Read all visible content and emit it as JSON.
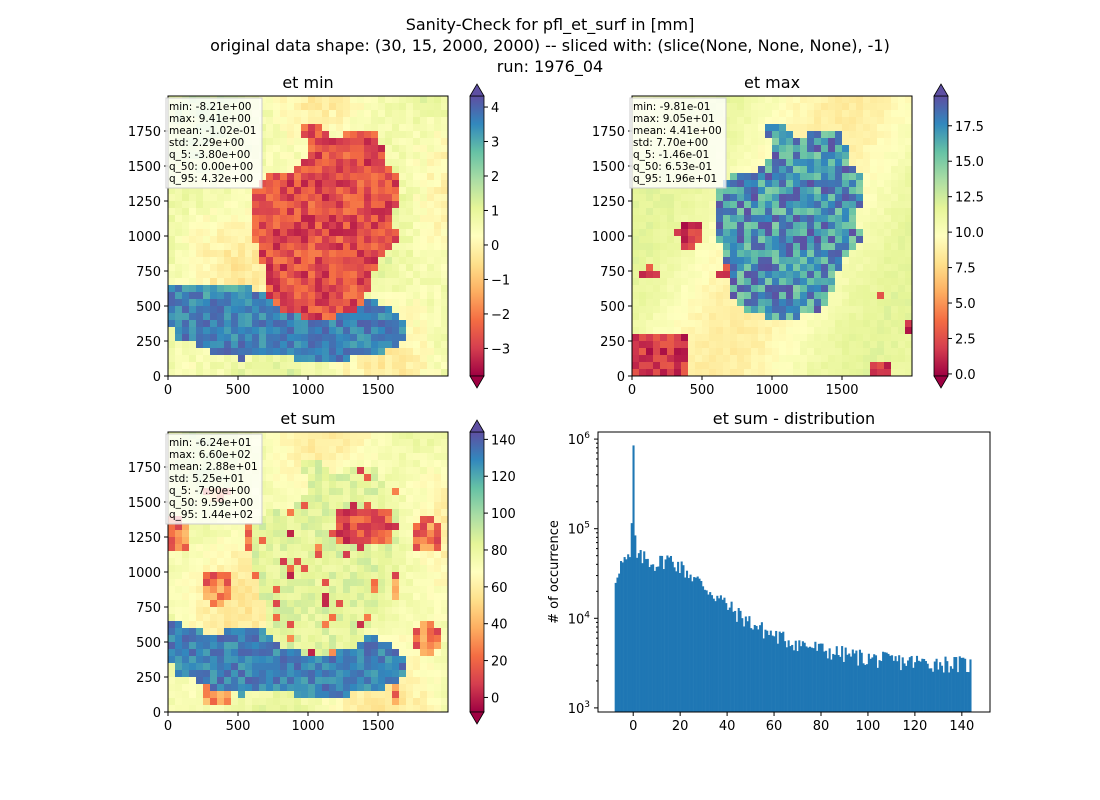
{
  "figure": {
    "title_lines": [
      "Sanity-Check for pfl_et_surf in [mm]",
      "original data shape: (30, 15, 2000, 2000) -- sliced with: (slice(None, None, None), -1)",
      "run: 1976_04"
    ]
  },
  "chart_data": [
    {
      "type": "heatmap",
      "title": "et min",
      "xlim": [
        0,
        2000
      ],
      "ylim": [
        0,
        2000
      ],
      "xticks": [
        "0",
        "500",
        "1000",
        "1500"
      ],
      "yticks": [
        "0",
        "250",
        "500",
        "750",
        "1000",
        "1250",
        "1500",
        "1750"
      ],
      "stats": [
        "min: -8.21e+00",
        "max: 9.41e+00",
        "mean: -1.02e-01",
        "std: 2.29e+00",
        "q_5: -3.80e+00",
        "q_50: 0.00e+00",
        "q_95: 4.32e+00"
      ],
      "colorbar": {
        "colormap": "Spectral",
        "range": [
          -3.8,
          4.32
        ],
        "ticks": [
          "−3",
          "−2",
          "−1",
          "0",
          "1",
          "2",
          "3",
          "4"
        ],
        "extend": "both"
      }
    },
    {
      "type": "heatmap",
      "title": "et max",
      "xlim": [
        0,
        2000
      ],
      "ylim": [
        0,
        2000
      ],
      "xticks": [
        "0",
        "500",
        "1000",
        "1500"
      ],
      "yticks": [
        "0",
        "250",
        "500",
        "750",
        "1000",
        "1250",
        "1500",
        "1750"
      ],
      "stats": [
        "min: -9.81e-01",
        "max: 9.05e+01",
        "mean: 4.41e+00",
        "std: 7.70e+00",
        "q_5: -1.46e-01",
        "q_50: 6.53e-01",
        "q_95: 1.96e+01"
      ],
      "colorbar": {
        "colormap": "Spectral",
        "range": [
          -0.146,
          19.6
        ],
        "ticks": [
          "0.0",
          "2.5",
          "5.0",
          "7.5",
          "10.0",
          "12.5",
          "15.0",
          "17.5"
        ],
        "extend": "both"
      }
    },
    {
      "type": "heatmap",
      "title": "et sum",
      "xlim": [
        0,
        2000
      ],
      "ylim": [
        0,
        2000
      ],
      "xticks": [
        "0",
        "500",
        "1000",
        "1500"
      ],
      "yticks": [
        "0",
        "250",
        "500",
        "750",
        "1000",
        "1250",
        "1500",
        "1750"
      ],
      "stats": [
        "min: -6.24e+01",
        "max: 6.60e+02",
        "mean: 2.88e+01",
        "std: 5.25e+01",
        "q_5: -7.90e+00",
        "q_50: 9.59e+00",
        "q_95: 1.44e+02"
      ],
      "colorbar": {
        "colormap": "Spectral",
        "range": [
          -7.9,
          144
        ],
        "ticks": [
          "0",
          "20",
          "40",
          "60",
          "80",
          "100",
          "120",
          "140"
        ],
        "extend": "both"
      }
    },
    {
      "type": "bar",
      "title": "et sum - distribution",
      "ylabel": "# of occurrence",
      "yscale": "log",
      "xlim": [
        -15,
        152
      ],
      "ylim": [
        900,
        1200000
      ],
      "xticks": [
        "0",
        "20",
        "40",
        "60",
        "80",
        "100",
        "120",
        "140"
      ],
      "yticks": [
        "10^3",
        "10^4",
        "10^5",
        "10^6"
      ],
      "bar_color": "#1f77b4",
      "bin_range": [
        -7.9,
        144
      ],
      "bin_count": 200,
      "counts_envelope": [
        [
          -7.9,
          25000
        ],
        [
          -6.5,
          36000
        ],
        [
          -5,
          41000
        ],
        [
          -3,
          44000
        ],
        [
          -1,
          46000
        ],
        [
          0,
          850000
        ],
        [
          1,
          47000
        ],
        [
          3,
          48000
        ],
        [
          5,
          47000
        ],
        [
          7,
          44000
        ],
        [
          9,
          41000
        ],
        [
          11,
          42000
        ],
        [
          13,
          45000
        ],
        [
          15,
          46000
        ],
        [
          17,
          44000
        ],
        [
          19,
          40000
        ],
        [
          21,
          36000
        ],
        [
          23,
          33000
        ],
        [
          25,
          30000
        ],
        [
          27,
          27000
        ],
        [
          29,
          24000
        ],
        [
          31,
          22000
        ],
        [
          33,
          20000
        ],
        [
          35,
          18000
        ],
        [
          37,
          16500
        ],
        [
          40,
          14000
        ],
        [
          43,
          12000
        ],
        [
          46,
          10500
        ],
        [
          50,
          9000
        ],
        [
          55,
          7500
        ],
        [
          60,
          6500
        ],
        [
          65,
          5800
        ],
        [
          70,
          5300
        ],
        [
          75,
          4900
        ],
        [
          80,
          4500
        ],
        [
          85,
          4200
        ],
        [
          90,
          4000
        ],
        [
          95,
          3800
        ],
        [
          100,
          3600
        ],
        [
          105,
          3500
        ],
        [
          110,
          3400
        ],
        [
          115,
          3300
        ],
        [
          120,
          3300
        ],
        [
          125,
          3200
        ],
        [
          130,
          3200
        ],
        [
          135,
          3150
        ],
        [
          140,
          3100
        ],
        [
          144,
          3000
        ]
      ]
    }
  ]
}
